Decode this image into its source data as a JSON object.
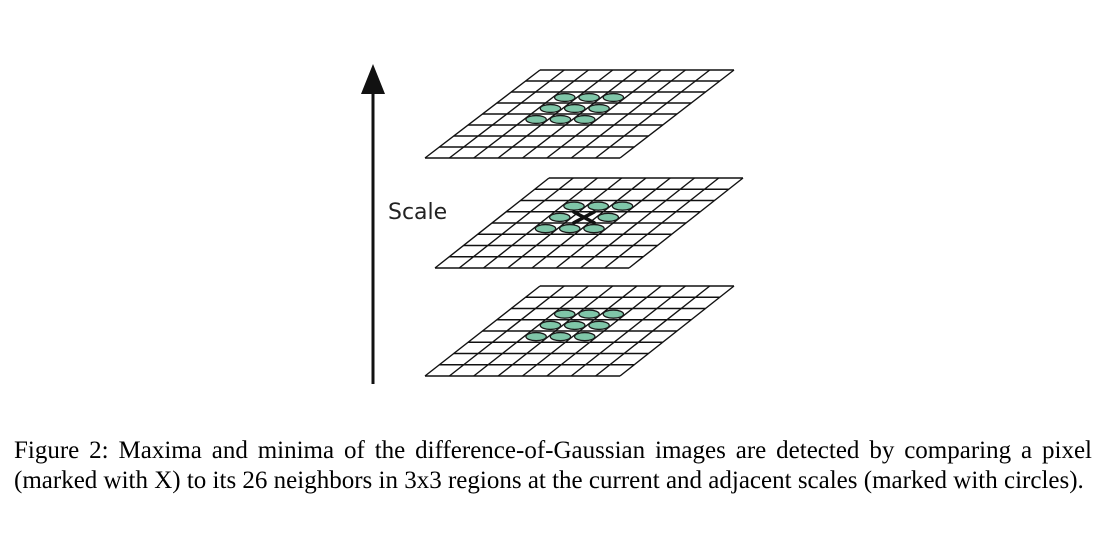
{
  "diagram": {
    "axis_label": "Scale",
    "grid_size": 8,
    "layers": [
      {
        "name": "upper-scale",
        "circles": [
          [
            2,
            2
          ],
          [
            3,
            2
          ],
          [
            4,
            2
          ],
          [
            2,
            3
          ],
          [
            3,
            3
          ],
          [
            4,
            3
          ],
          [
            2,
            4
          ],
          [
            3,
            4
          ],
          [
            4,
            4
          ]
        ],
        "center_mark": false
      },
      {
        "name": "current-scale",
        "circles": [
          [
            2,
            2
          ],
          [
            3,
            2
          ],
          [
            4,
            2
          ],
          [
            2,
            3
          ],
          [
            4,
            3
          ],
          [
            2,
            4
          ],
          [
            3,
            4
          ],
          [
            4,
            4
          ]
        ],
        "center_mark": true
      },
      {
        "name": "lower-scale",
        "circles": [
          [
            2,
            2
          ],
          [
            3,
            2
          ],
          [
            4,
            2
          ],
          [
            2,
            3
          ],
          [
            3,
            3
          ],
          [
            4,
            3
          ],
          [
            2,
            4
          ],
          [
            3,
            4
          ],
          [
            4,
            4
          ]
        ],
        "center_mark": false
      }
    ],
    "colors": {
      "circle_fill": "#7fc6a8",
      "line": "#111111"
    }
  },
  "caption": {
    "text": "Figure 2: Maxima and minima of the difference-of-Gaussian images are detected by comparing a pixel (marked with X) to its 26 neighbors in 3x3 regions at the current and adjacent scales (marked with circles)."
  }
}
